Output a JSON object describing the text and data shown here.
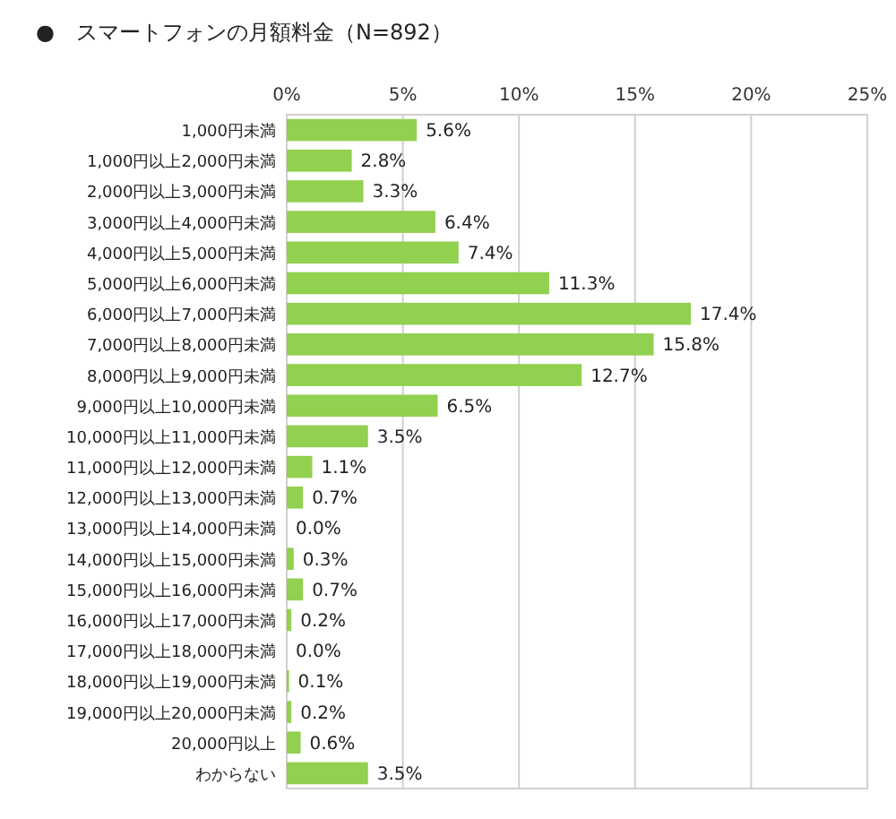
{
  "chart_data": {
    "type": "bar",
    "orientation": "horizontal",
    "title": "●　スマートフォンの月額料金（N=892）",
    "categories": [
      "1,000円未満",
      "1,000円以上2,000円未満",
      "2,000円以上3,000円未満",
      "3,000円以上4,000円未満",
      "4,000円以上5,000円未満",
      "5,000円以上6,000円未満",
      "6,000円以上7,000円未満",
      "7,000円以上8,000円未満",
      "8,000円以上9,000円未満",
      "9,000円以上10,000円未満",
      "10,000円以上11,000円未満",
      "11,000円以上12,000円未満",
      "12,000円以上13,000円未満",
      "13,000円以上14,000円未満",
      "14,000円以上15,000円未満",
      "15,000円以上16,000円未満",
      "16,000円以上17,000円未満",
      "17,000円以上18,000円未満",
      "18,000円以上19,000円未満",
      "19,000円以上20,000円未満",
      "20,000円以上",
      "わからない"
    ],
    "values": [
      5.6,
      2.8,
      3.3,
      6.4,
      7.4,
      11.3,
      17.4,
      15.8,
      12.7,
      6.5,
      3.5,
      1.1,
      0.7,
      0.0,
      0.3,
      0.7,
      0.2,
      0.0,
      0.1,
      0.2,
      0.6,
      3.5
    ],
    "value_labels": [
      "5.6%",
      "2.8%",
      "3.3%",
      "6.4%",
      "7.4%",
      "11.3%",
      "17.4%",
      "15.8%",
      "12.7%",
      "6.5%",
      "3.5%",
      "1.1%",
      "0.7%",
      "0.0%",
      "0.3%",
      "0.7%",
      "0.2%",
      "0.0%",
      "0.1%",
      "0.2%",
      "0.6%",
      "3.5%"
    ],
    "color": "#92d050",
    "xlim": [
      0,
      25
    ],
    "xticks": [
      {
        "value": 0,
        "label": "0%"
      },
      {
        "value": 5,
        "label": "5%"
      },
      {
        "value": 10,
        "label": "10%"
      },
      {
        "value": 15,
        "label": "15%"
      },
      {
        "value": 20,
        "label": "20%"
      },
      {
        "value": 25,
        "label": "25%"
      }
    ],
    "grid": "x"
  }
}
